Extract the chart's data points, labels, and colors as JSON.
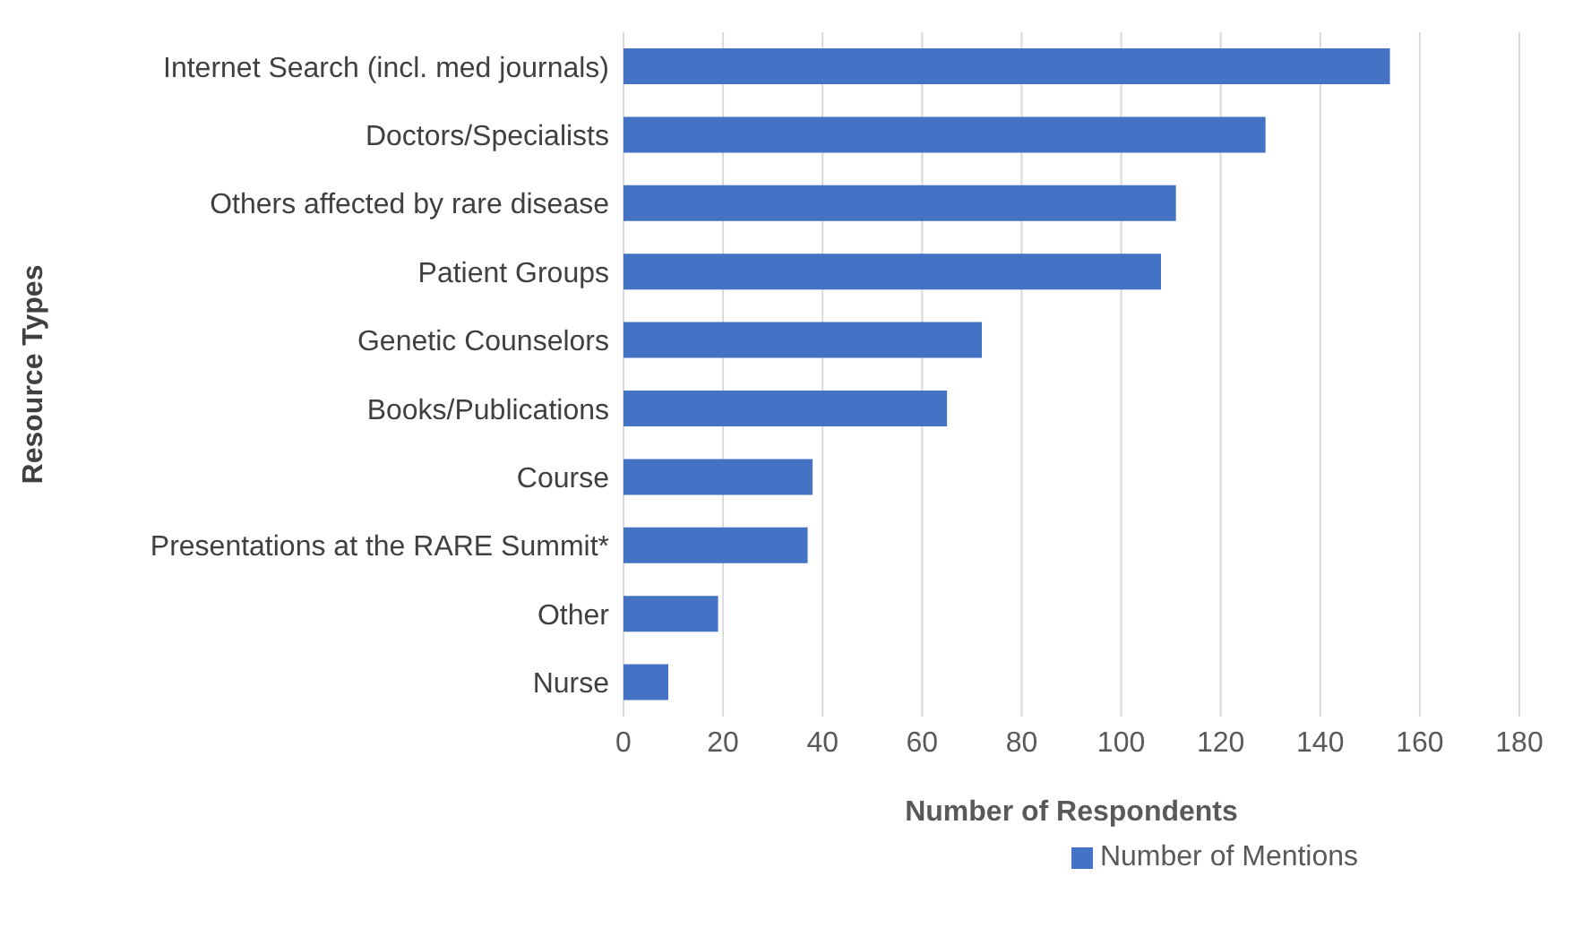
{
  "chart_data": {
    "type": "bar",
    "orientation": "horizontal",
    "xlabel": "Number of Respondents",
    "ylabel": "Resource Types",
    "categories": [
      "Internet Search (incl. med journals)",
      "Doctors/Specialists",
      "Others affected by rare disease",
      "Patient Groups",
      "Genetic Counselors",
      "Books/Publications",
      "Course",
      "Presentations at the RARE Summit*",
      "Other",
      "Nurse"
    ],
    "series": [
      {
        "name": "Number of Mentions",
        "color": "#4472c4",
        "values": [
          154,
          129,
          111,
          108,
          72,
          65,
          38,
          37,
          19,
          9
        ]
      }
    ],
    "xlim": [
      0,
      180
    ],
    "xticks": [
      0,
      20,
      40,
      60,
      80,
      100,
      120,
      140,
      160,
      180
    ],
    "grid": "x",
    "legend": "bottom"
  }
}
